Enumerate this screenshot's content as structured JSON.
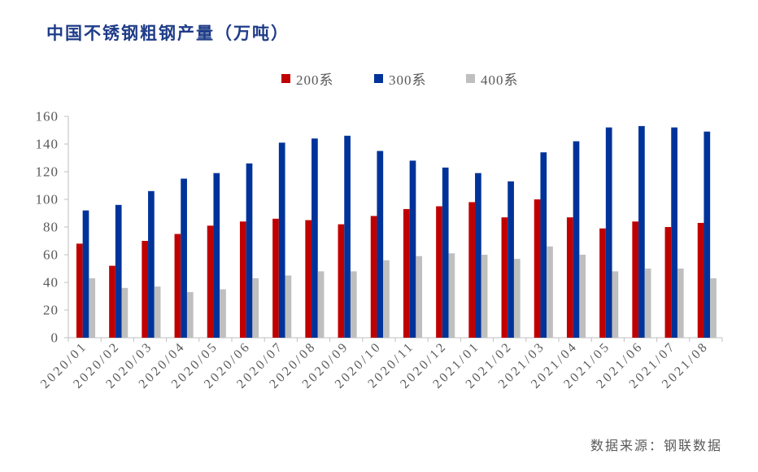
{
  "colors": {
    "title": "#1f3c88",
    "text": "#595959",
    "axis": "#bfbfbf"
  },
  "source": "数据来源：钢联数据",
  "chart_data": {
    "type": "bar",
    "title": "中国不锈钢粗钢产量（万吨）",
    "xlabel": "",
    "ylabel": "",
    "categories": [
      "2020/01",
      "2020/02",
      "2020/03",
      "2020/04",
      "2020/05",
      "2020/06",
      "2020/07",
      "2020/08",
      "2020/09",
      "2020/10",
      "2020/11",
      "2020/12",
      "2021/01",
      "2021/02",
      "2021/03",
      "2021/04",
      "2021/05",
      "2021/06",
      "2021/07",
      "2021/08"
    ],
    "series": [
      {
        "name": "200系",
        "color": "#c00000",
        "values": [
          68,
          52,
          70,
          75,
          81,
          84,
          86,
          85,
          82,
          88,
          93,
          95,
          98,
          87,
          100,
          87,
          79,
          84,
          80,
          83
        ]
      },
      {
        "name": "300系",
        "color": "#003399",
        "values": [
          92,
          96,
          106,
          115,
          119,
          126,
          141,
          144,
          146,
          135,
          128,
          123,
          119,
          113,
          134,
          142,
          152,
          153,
          152,
          149
        ]
      },
      {
        "name": "400系",
        "color": "#bfbfbf",
        "values": [
          43,
          36,
          37,
          33,
          35,
          43,
          45,
          48,
          48,
          56,
          59,
          61,
          60,
          57,
          66,
          60,
          48,
          50,
          50,
          43
        ]
      }
    ],
    "ylim": [
      0,
      160
    ],
    "yticks": [
      0,
      20,
      40,
      60,
      80,
      100,
      120,
      140,
      160
    ],
    "grid": false,
    "legend_position": "top-center"
  }
}
